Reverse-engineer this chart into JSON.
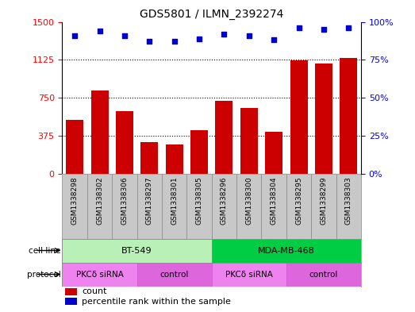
{
  "title": "GDS5801 / ILMN_2392274",
  "samples": [
    "GSM1338298",
    "GSM1338302",
    "GSM1338306",
    "GSM1338297",
    "GSM1338301",
    "GSM1338305",
    "GSM1338296",
    "GSM1338300",
    "GSM1338304",
    "GSM1338295",
    "GSM1338299",
    "GSM1338303"
  ],
  "counts": [
    530,
    820,
    620,
    310,
    290,
    430,
    720,
    650,
    410,
    1120,
    1090,
    1140
  ],
  "percentiles": [
    91,
    94,
    91,
    87,
    87,
    89,
    92,
    91,
    88,
    96,
    95,
    96
  ],
  "ylim_left": [
    0,
    1500
  ],
  "ylim_right": [
    0,
    100
  ],
  "yticks_left": [
    0,
    375,
    750,
    1125,
    1500
  ],
  "yticks_right": [
    0,
    25,
    50,
    75,
    100
  ],
  "bar_color": "#cc0000",
  "scatter_color": "#0000cc",
  "cell_lines": [
    {
      "label": "BT-549",
      "start": 0,
      "end": 6,
      "color": "#b8f0b8"
    },
    {
      "label": "MDA-MB-468",
      "start": 6,
      "end": 12,
      "color": "#00cc44"
    }
  ],
  "protocols": [
    {
      "label": "PKCδ siRNA",
      "start": 0,
      "end": 3,
      "color": "#ee82ee"
    },
    {
      "label": "control",
      "start": 3,
      "end": 6,
      "color": "#dd66dd"
    },
    {
      "label": "PKCδ siRNA",
      "start": 6,
      "end": 9,
      "color": "#ee82ee"
    },
    {
      "label": "control",
      "start": 9,
      "end": 12,
      "color": "#dd66dd"
    }
  ],
  "legend_count_label": "count",
  "legend_pct_label": "percentile rank within the sample",
  "cell_line_label": "cell line",
  "protocol_label": "protocol",
  "sample_bg_color": "#c8c8c8",
  "border_color": "#888888"
}
